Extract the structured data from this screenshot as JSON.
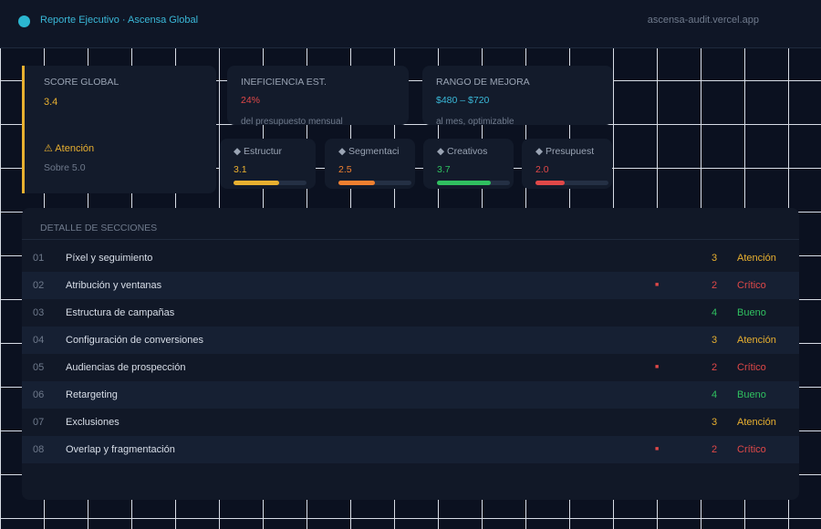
{
  "header": {
    "title": "Reporte Ejecutivo · Ascensa Global",
    "url": "ascensa-audit.vercel.app"
  },
  "overall": {
    "label": "SCORE GLOBAL",
    "score": "3.4",
    "status": "⚠ Atención",
    "scale": "Sobre 5.0"
  },
  "kpis": [
    {
      "label": "INEFICIENCIA EST.",
      "value": "24%",
      "note": "del presupuesto mensual"
    },
    {
      "label": "RANGO DE MEJORA",
      "value": "$480 – $720",
      "note": "al mes, optimizable"
    }
  ],
  "areas": [
    {
      "label": "◆ Estructur",
      "score": {
        "value": 3.1,
        "label": "3.1"
      },
      "color": "#e8b030"
    },
    {
      "label": "◆ Segmentaci",
      "score": {
        "value": 2.5,
        "label": "2.5"
      },
      "color": "#f08030"
    },
    {
      "label": "◆ Creativos",
      "score": {
        "value": 3.7,
        "label": "3.7"
      },
      "color": "#30c060"
    },
    {
      "label": "◆ Presupuest",
      "score": {
        "value": 2.0,
        "label": "2.0"
      },
      "color": "#e04848"
    }
  ],
  "table": {
    "title": "DETALLE DE SECCIONES",
    "rows": [
      [
        "01",
        "Píxel y seguimiento",
        null,
        "3",
        "Atención"
      ],
      [
        "02",
        "Atribución y ventanas",
        "■",
        "2",
        "Crítico"
      ],
      [
        "03",
        "Estructura de campañas",
        null,
        "4",
        "Bueno"
      ],
      [
        "04",
        "Configuración de conversiones",
        null,
        "3",
        "Atención"
      ],
      [
        "05",
        "Audiencias de prospección",
        "■",
        "2",
        "Crítico"
      ],
      [
        "06",
        "Retargeting",
        null,
        "4",
        "Bueno"
      ],
      [
        "07",
        "Exclusiones",
        null,
        "3",
        "Atención"
      ],
      [
        "08",
        "Overlap y fragmentación",
        "■",
        "2",
        "Crítico"
      ]
    ]
  }
}
